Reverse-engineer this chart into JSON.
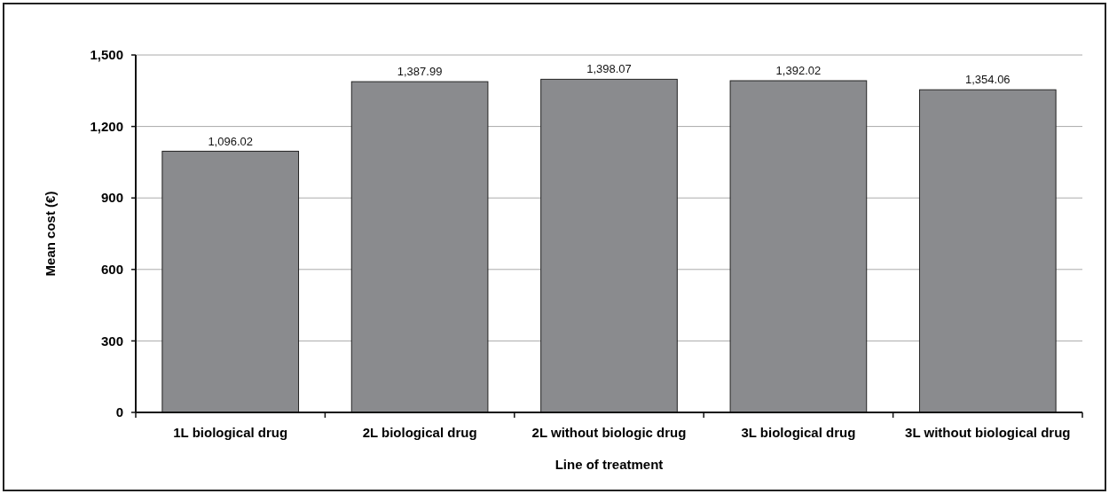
{
  "chart_data": {
    "type": "bar",
    "xlabel": "Line of treatment",
    "ylabel": "Mean cost (€)",
    "categories": [
      "1L biological drug",
      "2L biological drug",
      "2L without biologic drug",
      "3L biological drug",
      "3L without biological drug"
    ],
    "values": [
      1096.02,
      1387.99,
      1398.07,
      1392.02,
      1354.06
    ],
    "value_labels": [
      "1,096.02",
      "1,387.99",
      "1,398.07",
      "1,392.02",
      "1,354.06"
    ],
    "color": "#8a8b8e",
    "ylim": [
      0,
      1500
    ],
    "yticks": [
      0,
      300,
      600,
      900,
      {
        "value": 1200,
        "label": "1,200"
      },
      {
        "value": 1500,
        "label": "1,500"
      }
    ],
    "grid": "y"
  }
}
